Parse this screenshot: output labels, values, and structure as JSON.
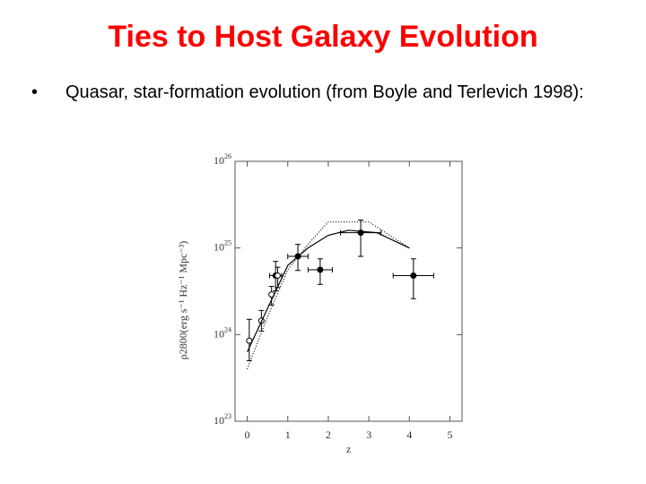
{
  "slide": {
    "title": "Ties to Host Galaxy Evolution",
    "bullets": [
      "Quasar, star-formation evolution (from Boyle and Terlevich 1998):"
    ]
  },
  "chart_data": {
    "type": "scatter",
    "log_y": true,
    "x_label": "z",
    "y_label": "ρ2800(erg s⁻¹ Hz⁻¹ Mpc⁻³)",
    "xlim": [
      -0.3,
      5.3
    ],
    "xticks": [
      0,
      1,
      2,
      3,
      4,
      5
    ],
    "ylim": [
      1e+23,
      1e+26
    ],
    "yticks": [
      {
        "value": 1e+23,
        "label": "10^23"
      },
      {
        "value": 1e+24,
        "label": "10^24"
      },
      {
        "value": 1e+25,
        "label": "10^25"
      },
      {
        "value": 1e+26,
        "label": "10^26"
      }
    ],
    "series": [
      {
        "marker": "filled",
        "color": "#000",
        "x": [
          0.7,
          1.25,
          1.8,
          2.8,
          4.1
        ],
        "values": [
          4.8e+24,
          8e+24,
          5.6e+24,
          1.5e+25,
          4.8e+24
        ],
        "xerr": [
          0.15,
          0.25,
          0.3,
          0.5,
          0.5
        ],
        "ylow": [
          3.2e+24,
          5.5e+24,
          3.8e+24,
          8e+24,
          2.6e+24
        ],
        "yhigh": [
          7e+24,
          1.1e+25,
          7.5e+24,
          2.1e+25,
          7.5e+24
        ]
      },
      {
        "marker": "open",
        "color": "#000",
        "x": [
          0.05,
          0.35,
          0.6,
          0.75
        ],
        "values": [
          8.5e+23,
          1.45e+24,
          2.9e+24,
          4.8e+24
        ],
        "ylow": [
          5e+23,
          1.1e+24,
          2.2e+24,
          3.5e+24
        ],
        "yhigh": [
          1.5e+24,
          1.9e+24,
          3.6e+24,
          6e+24
        ]
      },
      {
        "marker": "line",
        "dash": "none",
        "color": "#000",
        "x": [
          0,
          0.5,
          1,
          1.5,
          2,
          2.5,
          3.2,
          4
        ],
        "values": [
          6.3e+23,
          2e+24,
          6.3e+24,
          1e+25,
          1.4e+25,
          1.6e+25,
          1.5e+25,
          1e+25
        ]
      },
      {
        "marker": "line",
        "dash": "1 2",
        "color": "#000",
        "x": [
          0,
          0.5,
          1,
          1.5,
          2,
          3,
          4
        ],
        "values": [
          4e+23,
          1.6e+24,
          5.6e+24,
          1.1e+25,
          2e+25,
          2e+25,
          1e+25
        ]
      }
    ]
  }
}
